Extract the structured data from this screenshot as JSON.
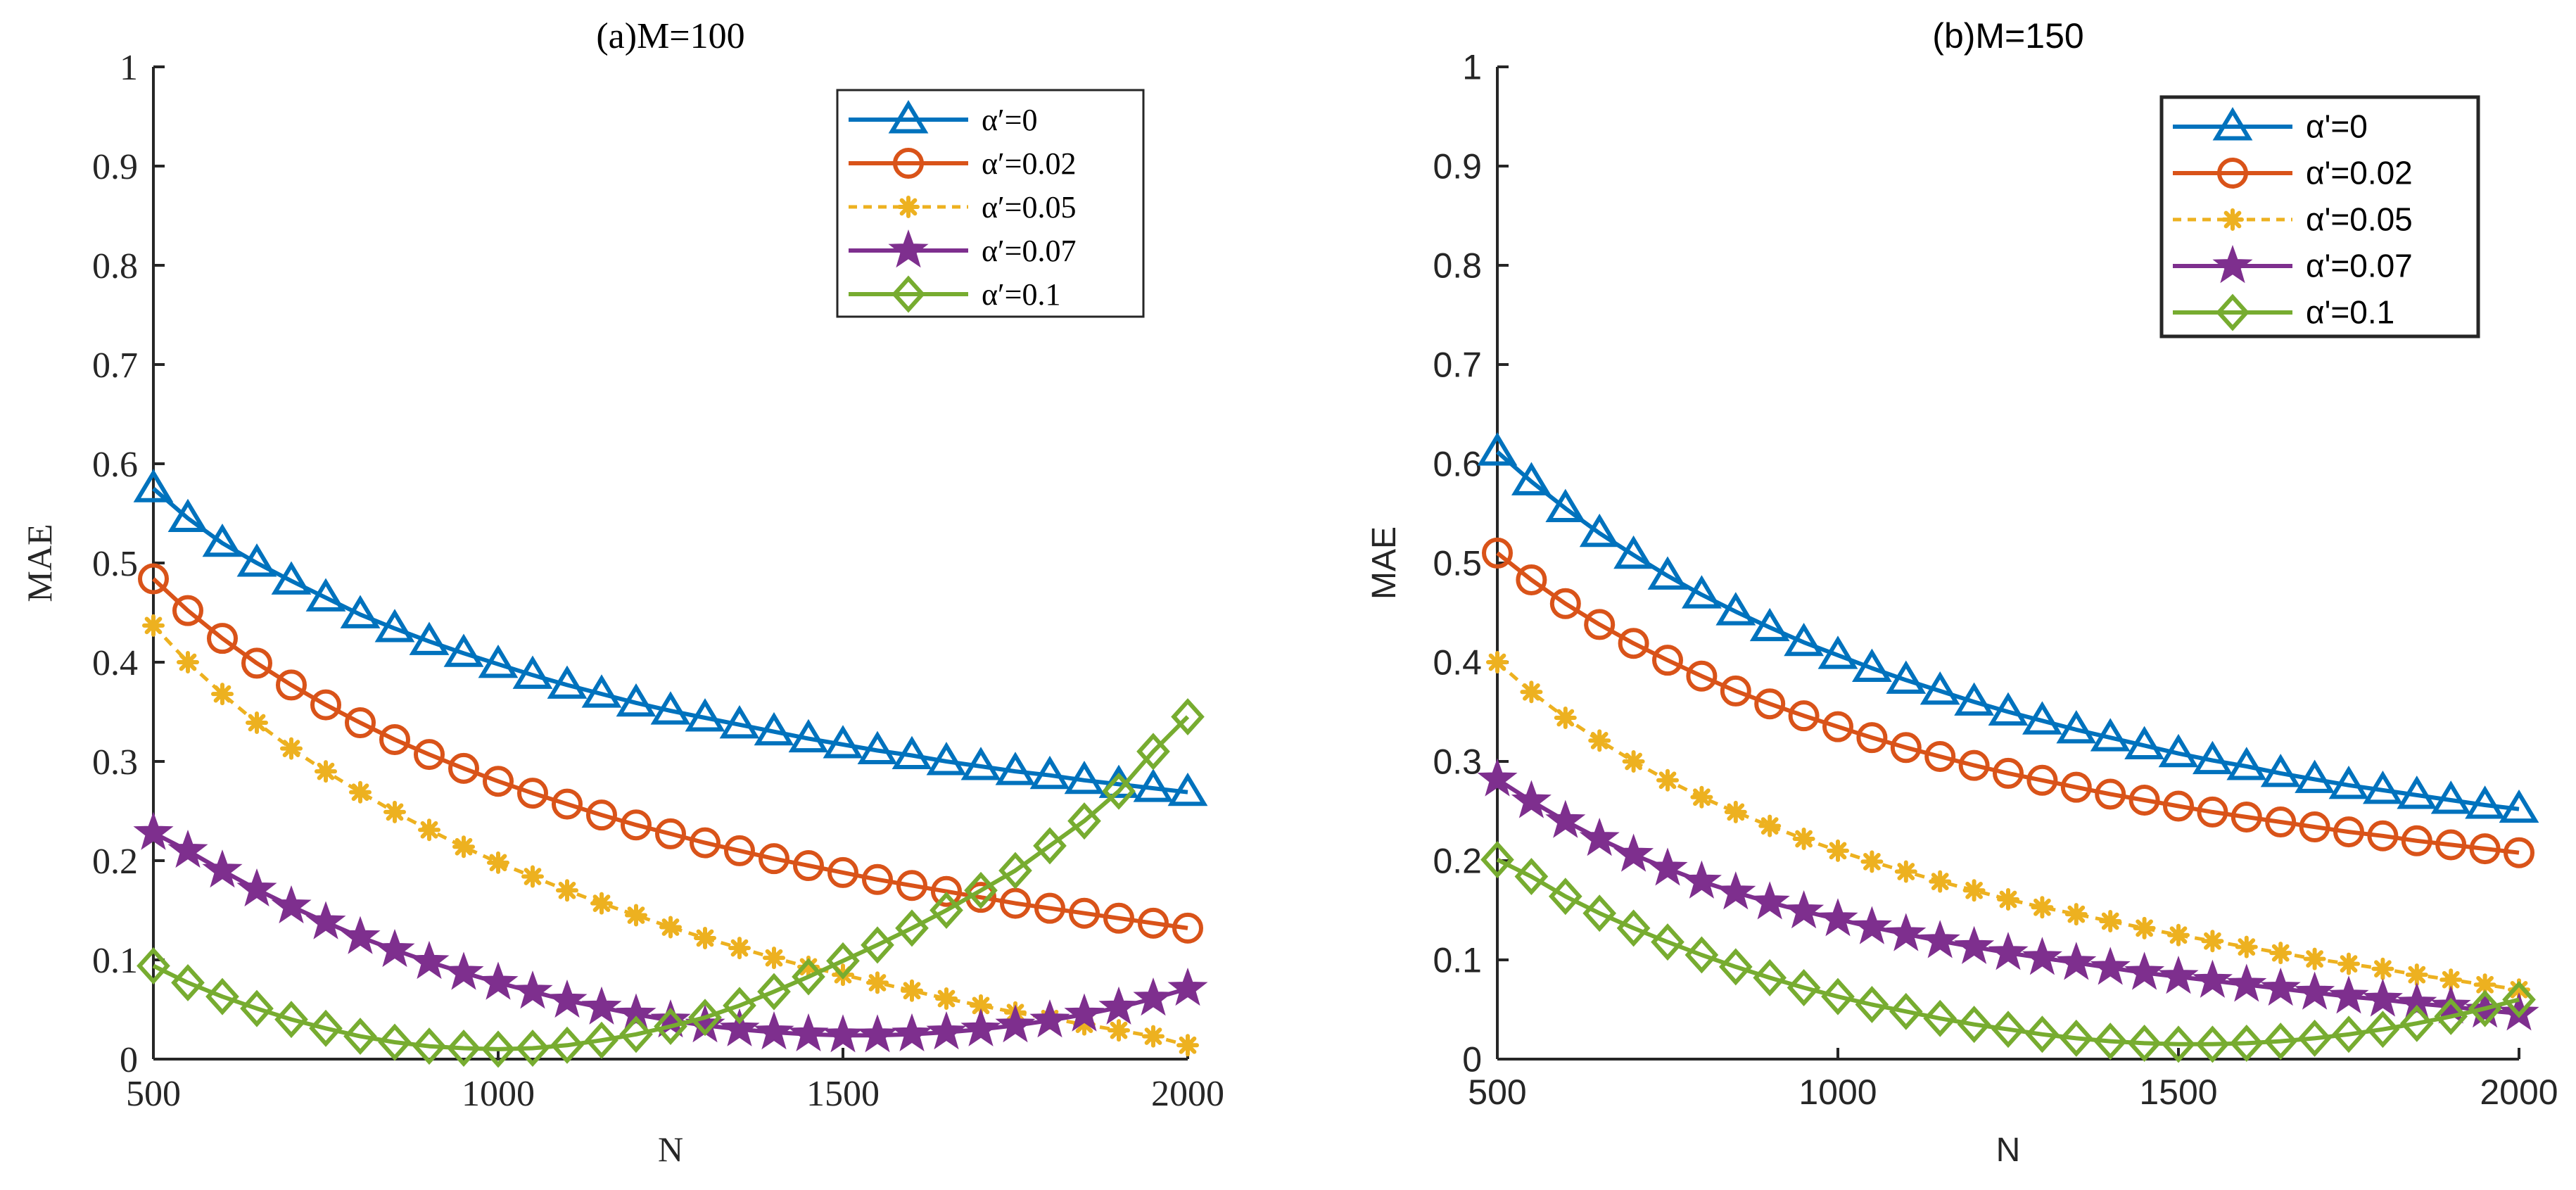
{
  "chart_data": [
    {
      "type": "line",
      "title": "(a)M=100",
      "xlabel": "N",
      "ylabel": "MAE",
      "xlim": [
        500,
        2000
      ],
      "ylim": [
        0,
        1
      ],
      "xticks": [
        500,
        1000,
        1500,
        2000
      ],
      "xtick_labels": [
        "500",
        "1000",
        "1500",
        "2000"
      ],
      "yticks": [
        0,
        0.1,
        0.2,
        0.3,
        0.4,
        0.5,
        0.6,
        0.7,
        0.8,
        0.9,
        1
      ],
      "ytick_labels": [
        "0",
        "0.1",
        "0.2",
        "0.3",
        "0.4",
        "0.5",
        "0.6",
        "0.7",
        "0.8",
        "0.9",
        "1"
      ],
      "legend_position": "top-right",
      "grid": false,
      "x": [
        500,
        550,
        600,
        650,
        700,
        750,
        800,
        850,
        900,
        950,
        1000,
        1050,
        1100,
        1150,
        1200,
        1250,
        1300,
        1350,
        1400,
        1450,
        1500,
        1550,
        1600,
        1650,
        1700,
        1750,
        1800,
        1850,
        1900,
        1950,
        2000
      ],
      "series": [
        {
          "name": "α'=0",
          "legend_label": "αʹ=0",
          "color": "#0072BD",
          "marker": "triangle",
          "dashed": false,
          "values": [
            0.575,
            0.545,
            0.52,
            0.5,
            0.482,
            0.465,
            0.448,
            0.434,
            0.421,
            0.409,
            0.398,
            0.387,
            0.377,
            0.368,
            0.359,
            0.351,
            0.344,
            0.337,
            0.33,
            0.323,
            0.317,
            0.311,
            0.306,
            0.3,
            0.295,
            0.29,
            0.286,
            0.281,
            0.277,
            0.273,
            0.269
          ]
        },
        {
          "name": "α'=0.02",
          "legend_label": "αʹ=0.02",
          "color": "#D95319",
          "marker": "circle",
          "dashed": false,
          "values": [
            0.484,
            0.452,
            0.424,
            0.399,
            0.377,
            0.357,
            0.339,
            0.322,
            0.307,
            0.293,
            0.28,
            0.268,
            0.257,
            0.246,
            0.236,
            0.227,
            0.218,
            0.21,
            0.202,
            0.195,
            0.188,
            0.181,
            0.175,
            0.169,
            0.163,
            0.157,
            0.152,
            0.147,
            0.142,
            0.137,
            0.132
          ]
        },
        {
          "name": "α'=0.05",
          "legend_label": "αʹ=0.05",
          "color": "#EDB120",
          "marker": "asterisk",
          "dashed": true,
          "values": [
            0.437,
            0.4,
            0.368,
            0.339,
            0.313,
            0.29,
            0.269,
            0.249,
            0.231,
            0.214,
            0.198,
            0.184,
            0.17,
            0.157,
            0.145,
            0.133,
            0.122,
            0.112,
            0.102,
            0.093,
            0.085,
            0.077,
            0.069,
            0.061,
            0.054,
            0.047,
            0.041,
            0.035,
            0.029,
            0.023,
            0.014
          ]
        },
        {
          "name": "α'=0.07",
          "legend_label": "αʹ=0.07",
          "color": "#7E2F8E",
          "marker": "star",
          "dashed": false,
          "values": [
            0.228,
            0.21,
            0.19,
            0.171,
            0.154,
            0.138,
            0.123,
            0.11,
            0.098,
            0.087,
            0.077,
            0.068,
            0.059,
            0.052,
            0.045,
            0.039,
            0.034,
            0.03,
            0.027,
            0.025,
            0.024,
            0.024,
            0.025,
            0.027,
            0.03,
            0.034,
            0.039,
            0.045,
            0.052,
            0.061,
            0.071
          ]
        },
        {
          "name": "α'=0.1",
          "legend_label": "αʹ=0.1",
          "color": "#77AC30",
          "marker": "diamond",
          "dashed": false,
          "values": [
            0.094,
            0.077,
            0.063,
            0.051,
            0.04,
            0.031,
            0.023,
            0.017,
            0.013,
            0.011,
            0.01,
            0.011,
            0.014,
            0.019,
            0.025,
            0.033,
            0.042,
            0.054,
            0.068,
            0.083,
            0.099,
            0.115,
            0.132,
            0.15,
            0.17,
            0.19,
            0.215,
            0.24,
            0.27,
            0.31,
            0.345
          ]
        }
      ]
    },
    {
      "type": "line",
      "title": "(b)M=150",
      "xlabel": "N",
      "ylabel": "MAE",
      "xlim": [
        500,
        2000
      ],
      "ylim": [
        0,
        1
      ],
      "xticks": [
        500,
        1000,
        1500,
        2000
      ],
      "xtick_labels": [
        "500",
        "1000",
        "1500",
        "2000"
      ],
      "yticks": [
        0,
        0.1,
        0.2,
        0.3,
        0.4,
        0.5,
        0.6,
        0.7,
        0.8,
        0.9,
        1
      ],
      "ytick_labels": [
        "0",
        "0.1",
        "0.2",
        "0.3",
        "0.4",
        "0.5",
        "0.6",
        "0.7",
        "0.8",
        "0.9",
        "1"
      ],
      "legend_position": "top-right",
      "grid": false,
      "x": [
        500,
        550,
        600,
        650,
        700,
        750,
        800,
        850,
        900,
        950,
        1000,
        1050,
        1100,
        1150,
        1200,
        1250,
        1300,
        1350,
        1400,
        1450,
        1500,
        1550,
        1600,
        1650,
        1700,
        1750,
        1800,
        1850,
        1900,
        1950,
        2000
      ],
      "series": [
        {
          "name": "α'=0",
          "legend_label": "αʹ=0",
          "color": "#0072BD",
          "marker": "triangle",
          "dashed": false,
          "values": [
            0.612,
            0.582,
            0.555,
            0.53,
            0.508,
            0.487,
            0.468,
            0.451,
            0.435,
            0.42,
            0.407,
            0.394,
            0.382,
            0.371,
            0.36,
            0.35,
            0.341,
            0.332,
            0.324,
            0.316,
            0.308,
            0.301,
            0.295,
            0.288,
            0.282,
            0.276,
            0.271,
            0.266,
            0.261,
            0.256,
            0.252
          ]
        },
        {
          "name": "α'=0.02",
          "legend_label": "αʹ=0.02",
          "color": "#D95319",
          "marker": "circle",
          "dashed": false,
          "values": [
            0.51,
            0.483,
            0.459,
            0.438,
            0.419,
            0.402,
            0.386,
            0.371,
            0.358,
            0.346,
            0.335,
            0.324,
            0.314,
            0.305,
            0.296,
            0.288,
            0.281,
            0.274,
            0.267,
            0.261,
            0.255,
            0.249,
            0.244,
            0.239,
            0.234,
            0.229,
            0.225,
            0.22,
            0.216,
            0.212,
            0.208
          ]
        },
        {
          "name": "α'=0.05",
          "legend_label": "αʹ=0.05",
          "color": "#EDB120",
          "marker": "asterisk",
          "dashed": true,
          "values": [
            0.4,
            0.37,
            0.344,
            0.321,
            0.3,
            0.281,
            0.264,
            0.249,
            0.235,
            0.222,
            0.21,
            0.199,
            0.189,
            0.179,
            0.17,
            0.161,
            0.153,
            0.146,
            0.139,
            0.132,
            0.125,
            0.119,
            0.113,
            0.107,
            0.101,
            0.096,
            0.091,
            0.085,
            0.08,
            0.075,
            0.07
          ]
        },
        {
          "name": "α'=0.07",
          "legend_label": "αʹ=0.07",
          "color": "#7E2F8E",
          "marker": "star",
          "dashed": false,
          "values": [
            0.282,
            0.26,
            0.24,
            0.222,
            0.206,
            0.192,
            0.179,
            0.168,
            0.158,
            0.149,
            0.141,
            0.133,
            0.126,
            0.119,
            0.113,
            0.107,
            0.102,
            0.097,
            0.092,
            0.087,
            0.083,
            0.079,
            0.075,
            0.071,
            0.067,
            0.063,
            0.06,
            0.056,
            0.053,
            0.049,
            0.046
          ]
        },
        {
          "name": "α'=0.1",
          "legend_label": "αʹ=0.1",
          "color": "#77AC30",
          "marker": "diamond",
          "dashed": false,
          "values": [
            0.201,
            0.184,
            0.164,
            0.147,
            0.132,
            0.118,
            0.105,
            0.093,
            0.082,
            0.072,
            0.063,
            0.055,
            0.048,
            0.041,
            0.035,
            0.03,
            0.025,
            0.021,
            0.018,
            0.016,
            0.015,
            0.015,
            0.016,
            0.018,
            0.021,
            0.025,
            0.03,
            0.036,
            0.043,
            0.051,
            0.06
          ]
        }
      ]
    }
  ]
}
